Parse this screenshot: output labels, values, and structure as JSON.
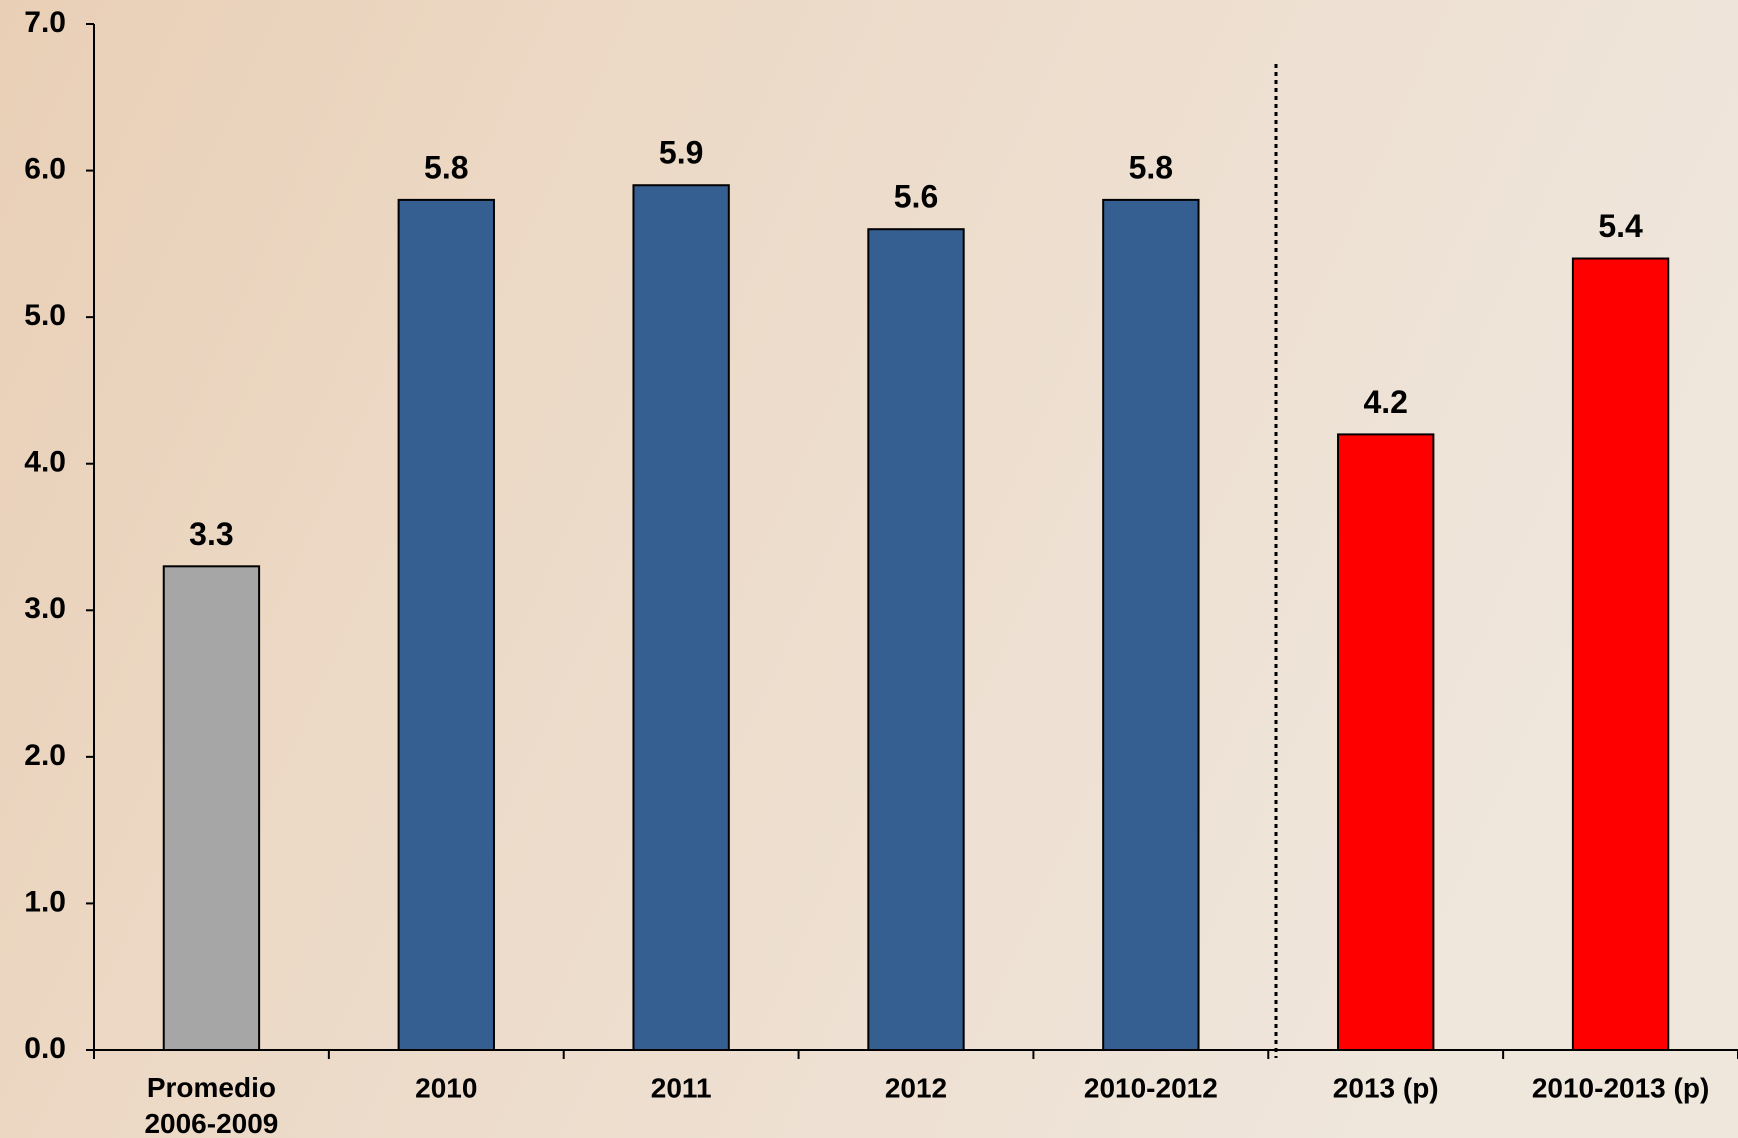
{
  "chart_data": {
    "type": "bar",
    "categories": [
      "Promedio\n2006-2009",
      "2010",
      "2011",
      "2012",
      "2010-2012",
      "2013 (p)",
      "2010-2013 (p)"
    ],
    "values": [
      3.3,
      5.8,
      5.9,
      5.6,
      5.8,
      4.2,
      5.4
    ],
    "colors": [
      "#a6a6a6",
      "#355f91",
      "#355f91",
      "#355f91",
      "#355f91",
      "#ff0000",
      "#ff0000"
    ],
    "ylim": [
      0,
      7
    ],
    "yticks": [
      {
        "value": 0,
        "label": "0.0"
      },
      {
        "value": 1,
        "label": "1.0"
      },
      {
        "value": 2,
        "label": "2.0"
      },
      {
        "value": 3,
        "label": "3.0"
      },
      {
        "value": 4,
        "label": "4.0"
      },
      {
        "value": 5,
        "label": "5.0"
      },
      {
        "value": 6,
        "label": "6.0"
      },
      {
        "value": 7,
        "label": "7.0"
      }
    ],
    "grid": false
  }
}
